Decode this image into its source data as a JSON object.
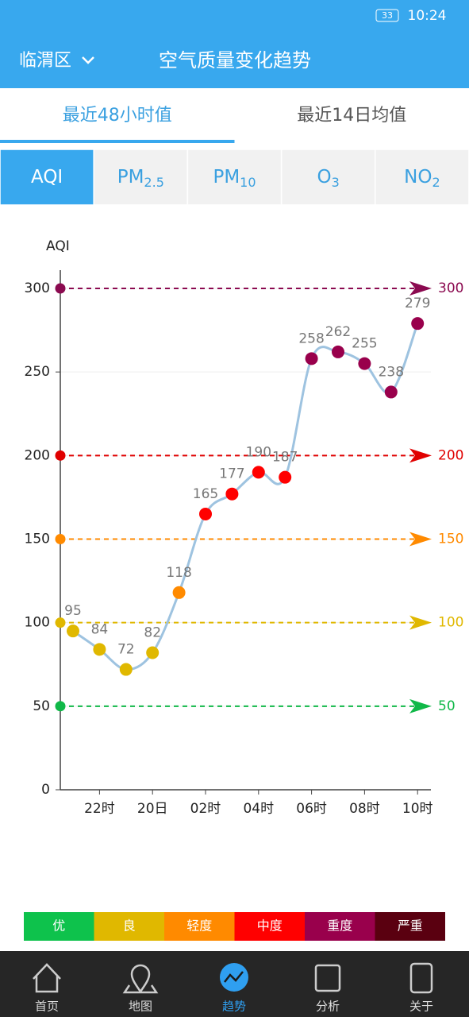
{
  "status_bar": {
    "time": "10:24",
    "battery": "33"
  },
  "header": {
    "location": "临渭区",
    "title": "空气质量变化趋势"
  },
  "tabs": [
    "最近48小时值",
    "最近14日均值"
  ],
  "tabs_active": 0,
  "pollutants": [
    {
      "main": "AQI"
    },
    {
      "main": "PM",
      "sub": "2.5"
    },
    {
      "main": "PM",
      "sub": "10"
    },
    {
      "main": "O",
      "sub": "3"
    },
    {
      "main": "NO",
      "sub": "2"
    }
  ],
  "pollutants_active": 0,
  "chart_data": {
    "type": "line",
    "y_label": "AQI",
    "categories": [
      null,
      "22时",
      null,
      "20日",
      null,
      "02时",
      null,
      "04时",
      null,
      "06时",
      null,
      "08时",
      null,
      "10时"
    ],
    "series": [
      {
        "color": "#9ec3e0",
        "values": [
          95,
          84,
          72,
          82,
          118,
          165,
          177,
          190,
          187,
          258,
          262,
          255,
          238,
          279
        ],
        "point_colors": [
          "#e0b800",
          "#e0b800",
          "#e0b800",
          "#e0b800",
          "#ff8a00",
          "#ff0000",
          "#ff0000",
          "#ff0000",
          "#ff0000",
          "#99004c",
          "#99004c",
          "#99004c",
          "#99004c",
          "#99004c"
        ]
      }
    ],
    "ylim": [
      0,
      300
    ],
    "yticks": [
      0,
      50,
      100,
      150,
      200,
      250,
      300
    ],
    "thresholds": [
      {
        "value": 50,
        "color": "#10b848"
      },
      {
        "value": 100,
        "color": "#e0b800"
      },
      {
        "value": 150,
        "color": "#ff8a00"
      },
      {
        "value": 200,
        "color": "#e00000"
      },
      {
        "value": 300,
        "color": "#8b0a50"
      }
    ]
  },
  "legend": [
    {
      "label": "优",
      "color": "#0ec24c"
    },
    {
      "label": "良",
      "color": "#e0b800"
    },
    {
      "label": "轻度",
      "color": "#ff8a00"
    },
    {
      "label": "中度",
      "color": "#ff0000"
    },
    {
      "label": "重度",
      "color": "#99004c"
    },
    {
      "label": "严重",
      "color": "#5a0010"
    }
  ],
  "nav": [
    "首页",
    "地图",
    "趋势",
    "分析",
    "关于"
  ],
  "nav_active": 2
}
